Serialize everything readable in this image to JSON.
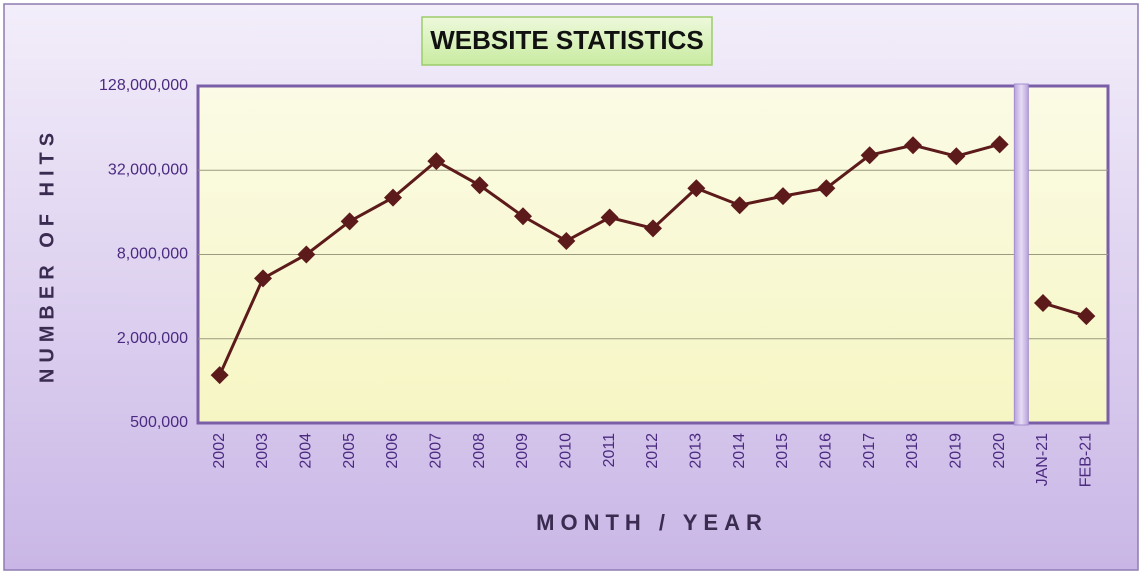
{
  "chart_data": {
    "type": "line",
    "title": "WEBSITE STATISTICS",
    "x_label": "MONTH / YEAR",
    "y_label": "NUMBER OF HITS",
    "categories": [
      "2002",
      "2003",
      "2004",
      "2005",
      "2006",
      "2007",
      "2008",
      "2009",
      "2010",
      "2011",
      "2012",
      "2013",
      "2014",
      "2015",
      "2016",
      "2017",
      "2018",
      "2019",
      "2020",
      null,
      "JAN-21",
      "FEB-21"
    ],
    "series": [
      {
        "name": null,
        "color": "#5c1a1a",
        "values": [
          1100000,
          5400000,
          8000000,
          13800000,
          20400000,
          37200000,
          25000000,
          15000000,
          10000000,
          14700000,
          12300000,
          23800000,
          18000000,
          20900000,
          23800000,
          41000000,
          48300000,
          40300000,
          49000000,
          null,
          3600000,
          2900000
        ]
      }
    ],
    "ylim": [
      500000,
      128000000
    ],
    "log_scale": true,
    "grid": true,
    "yticks": [
      {
        "value": 500000,
        "label": "500,000"
      },
      {
        "value": 2000000,
        "label": "2,000,000"
      },
      {
        "value": 8000000,
        "label": "8,000,000"
      },
      {
        "value": 32000000,
        "label": "32,000,000"
      },
      {
        "value": 128000000,
        "label": "128,000,000"
      }
    ]
  }
}
